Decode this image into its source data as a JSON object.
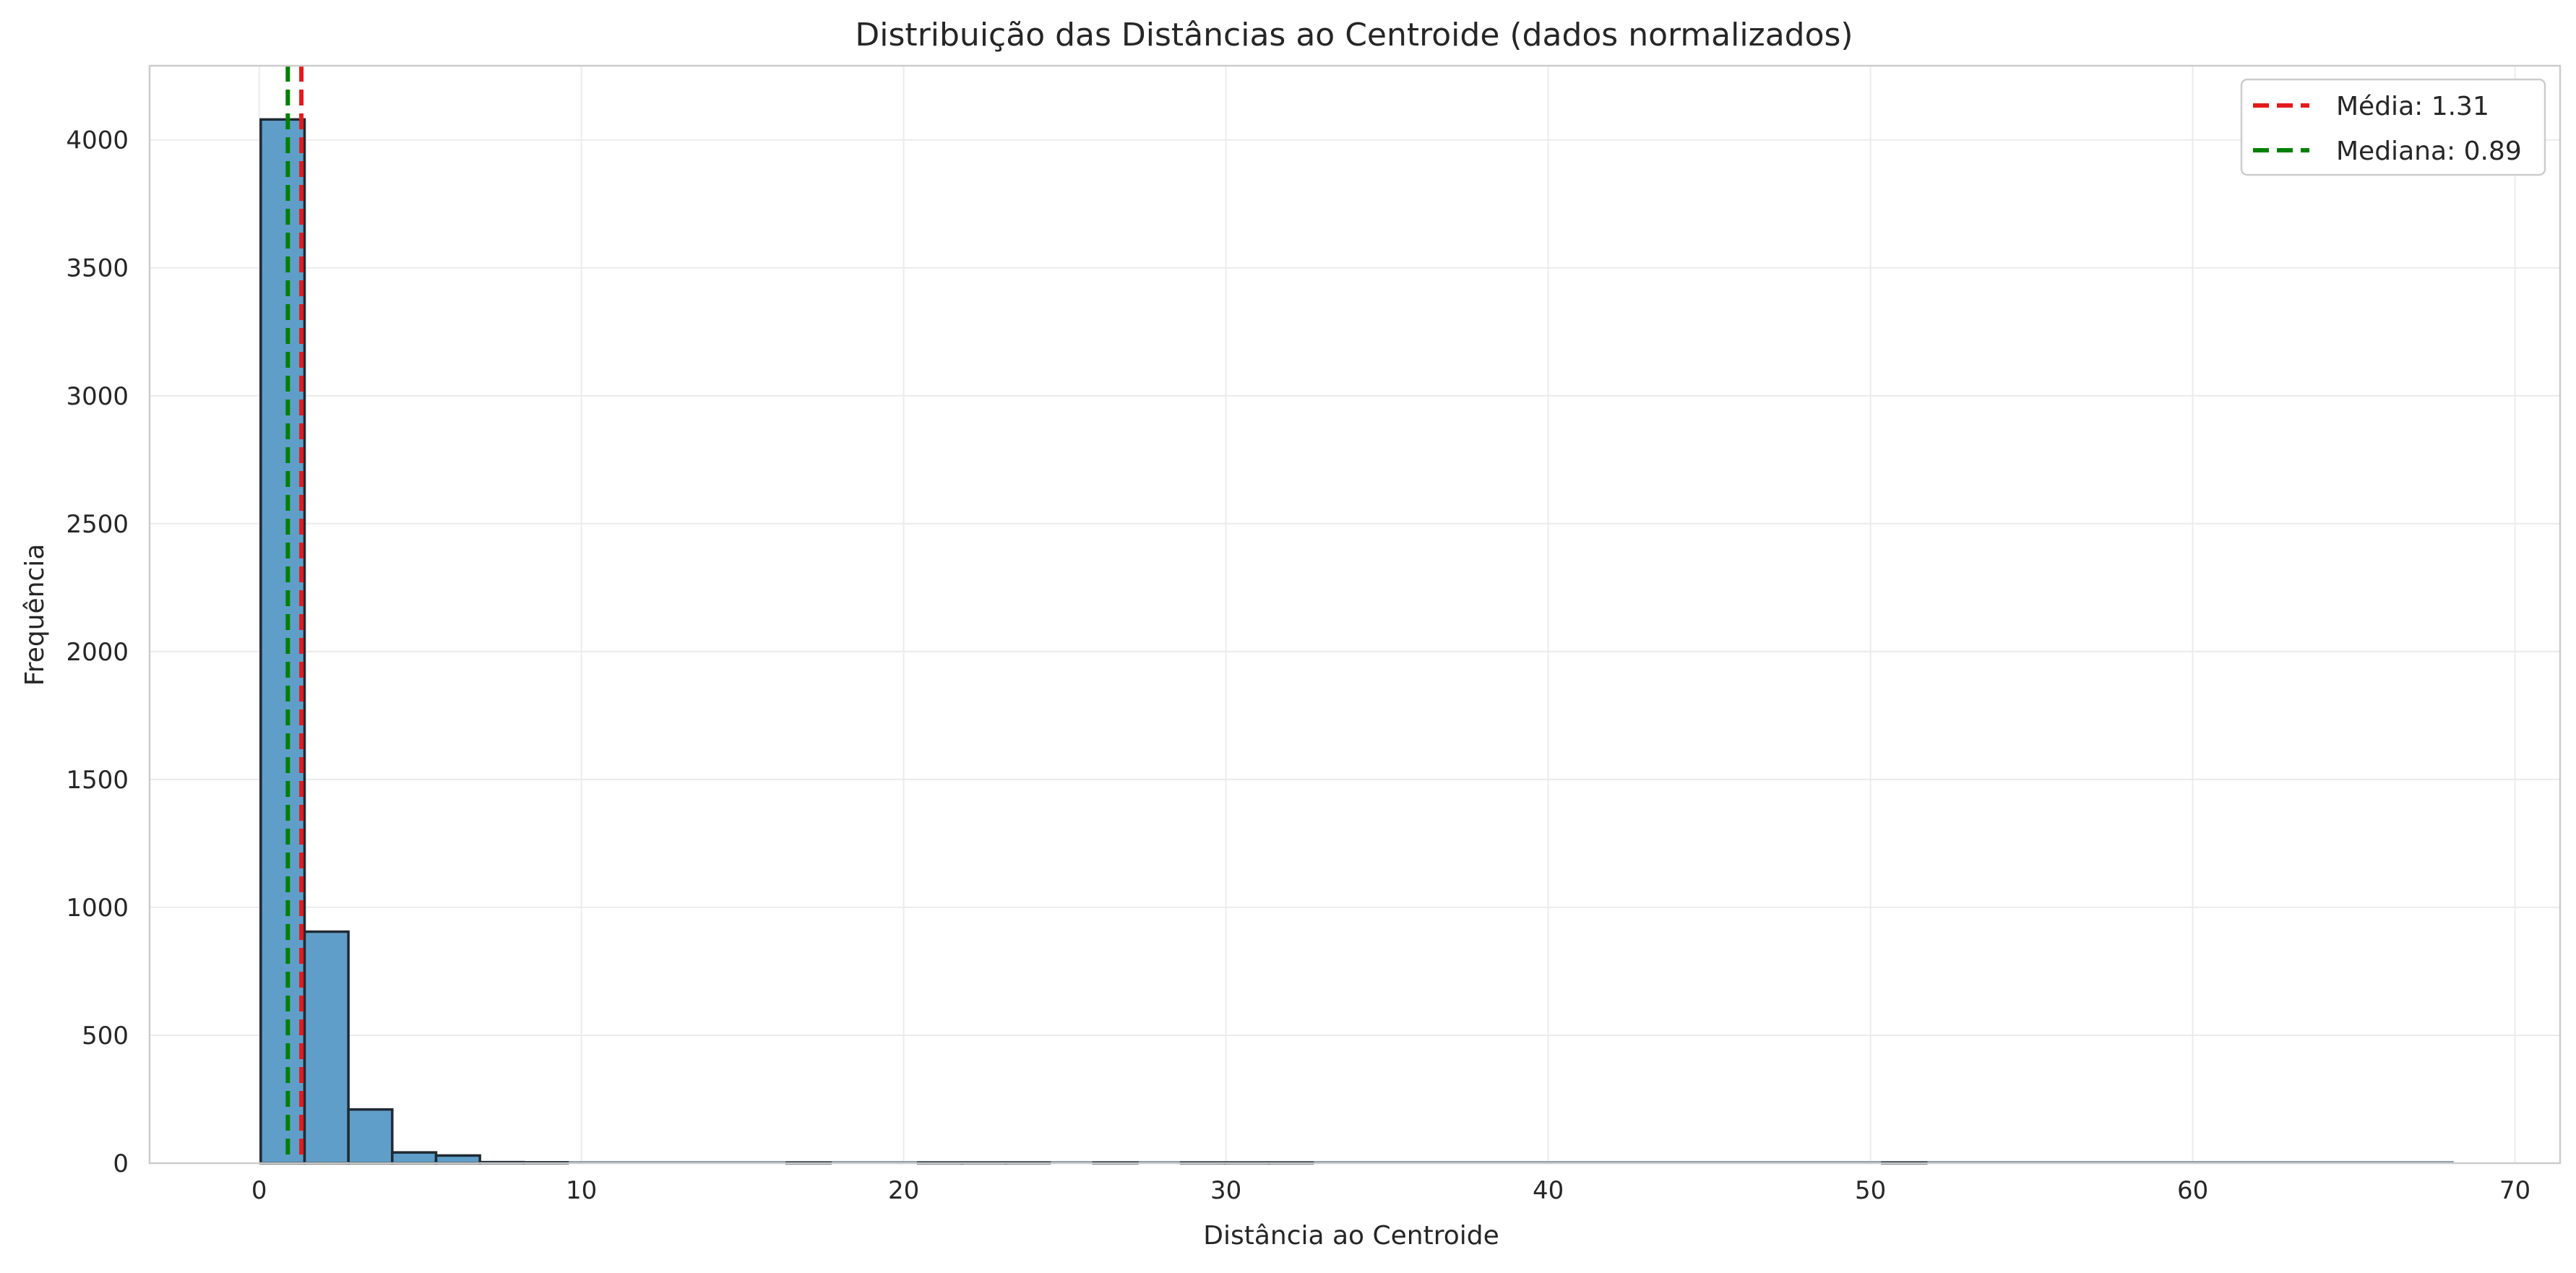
{
  "chart_data": {
    "type": "bar",
    "subtype": "histogram",
    "title": "Distribuição das Distâncias ao Centroide (dados normalizados)",
    "xlabel": "Distância ao Centroide",
    "ylabel": "Frequência",
    "xlim": [
      -3.4,
      71.4
    ],
    "ylim": [
      0,
      4290
    ],
    "x_ticks": [
      0,
      10,
      20,
      30,
      40,
      50,
      60,
      70
    ],
    "y_ticks": [
      0,
      500,
      1000,
      1500,
      2000,
      2500,
      3000,
      3500,
      4000
    ],
    "grid": true,
    "legend_position": "top-right",
    "bin_width": 1.36,
    "bins": [
      {
        "x0": 0.05,
        "count": 4080
      },
      {
        "x0": 1.41,
        "count": 905
      },
      {
        "x0": 2.77,
        "count": 210
      },
      {
        "x0": 4.13,
        "count": 42
      },
      {
        "x0": 5.49,
        "count": 30
      },
      {
        "x0": 6.85,
        "count": 4
      },
      {
        "x0": 8.21,
        "count": 3
      },
      {
        "x0": 16.37,
        "count": 2
      },
      {
        "x0": 20.45,
        "count": 2
      },
      {
        "x0": 21.81,
        "count": 2
      },
      {
        "x0": 23.17,
        "count": 2
      },
      {
        "x0": 25.89,
        "count": 2
      },
      {
        "x0": 28.61,
        "count": 2
      },
      {
        "x0": 29.97,
        "count": 2
      },
      {
        "x0": 31.33,
        "count": 2
      },
      {
        "x0": 50.37,
        "count": 2
      }
    ],
    "baseline_end": 68.1,
    "colors": {
      "bar_fill": "#5f9ec9",
      "bar_edge": "#1f2a33",
      "mean_line": "#e41a1c",
      "median_line": "#008000"
    },
    "reference_lines": [
      {
        "name": "Média: 1.31",
        "value": 1.31,
        "color": "#e41a1c",
        "style": "dashed"
      },
      {
        "name": "Mediana: 0.89",
        "value": 0.89,
        "color": "#008000",
        "style": "dashed"
      }
    ]
  }
}
